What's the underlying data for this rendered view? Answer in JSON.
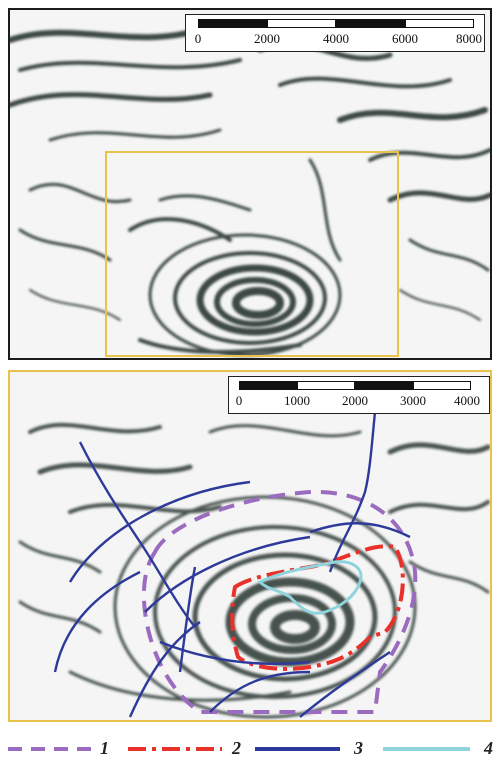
{
  "top_panel": {
    "scalebar": {
      "ticks": [
        "0",
        "2000",
        "4000",
        "6000",
        "8000"
      ]
    },
    "frame_color": "#1c1c1c",
    "inset_box_color": "#e9c24a"
  },
  "bottom_panel": {
    "scalebar": {
      "ticks": [
        "0",
        "1000",
        "2000",
        "3000",
        "4000"
      ]
    },
    "frame_color": "#e9c24a"
  },
  "legend": {
    "items": [
      {
        "number": "1",
        "color": "#9b6bc0",
        "style": "dashed"
      },
      {
        "number": "2",
        "color": "#e8312a",
        "style": "dash-dot"
      },
      {
        "number": "3",
        "color": "#2d3a9a",
        "style": "solid"
      },
      {
        "number": "4",
        "color": "#8fd3dc",
        "style": "solid"
      }
    ]
  }
}
